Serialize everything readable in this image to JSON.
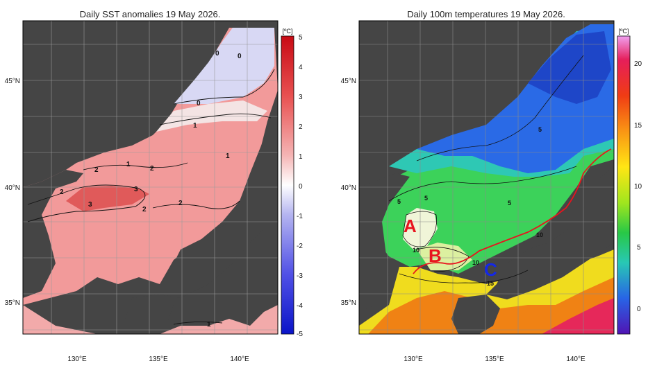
{
  "left_panel": {
    "title": "Daily SST anomalies 19 May 2026.",
    "colorbar": {
      "unit": "[ºC]",
      "ticks": [
        "5",
        "4",
        "3",
        "2",
        "1",
        "0",
        "-1",
        "-2",
        "-3",
        "-4",
        "-5"
      ]
    },
    "y_ticks": [
      "45°N",
      "40°N",
      "35°N"
    ],
    "x_ticks": [
      "130°E",
      "135°E",
      "140°E"
    ],
    "contour_labels": [
      "0",
      "0",
      "0",
      "1",
      "1",
      "1",
      "2",
      "2",
      "2",
      "2",
      "2",
      "3",
      "3",
      "1",
      "2"
    ]
  },
  "right_panel": {
    "title": "Daily 100m temperatures 19 May 2026.",
    "colorbar": {
      "unit": "[ºC]",
      "ticks": [
        "20",
        "15",
        "10",
        "5",
        "0"
      ]
    },
    "y_ticks": [
      "45°N",
      "40°N",
      "35°N"
    ],
    "x_ticks": [
      "130°E",
      "135°E",
      "140°E"
    ],
    "contour_labels": [
      "5",
      "5",
      "5",
      "5",
      "10",
      "10",
      "10",
      "15"
    ],
    "markers": [
      "A",
      "B",
      "C"
    ]
  },
  "colors": {
    "land": "#454545",
    "anom_warm": "#f29a9a",
    "anom_cold": "#c8c8f0",
    "marker_red": "#e8141e",
    "marker_blue": "#1428e6"
  }
}
